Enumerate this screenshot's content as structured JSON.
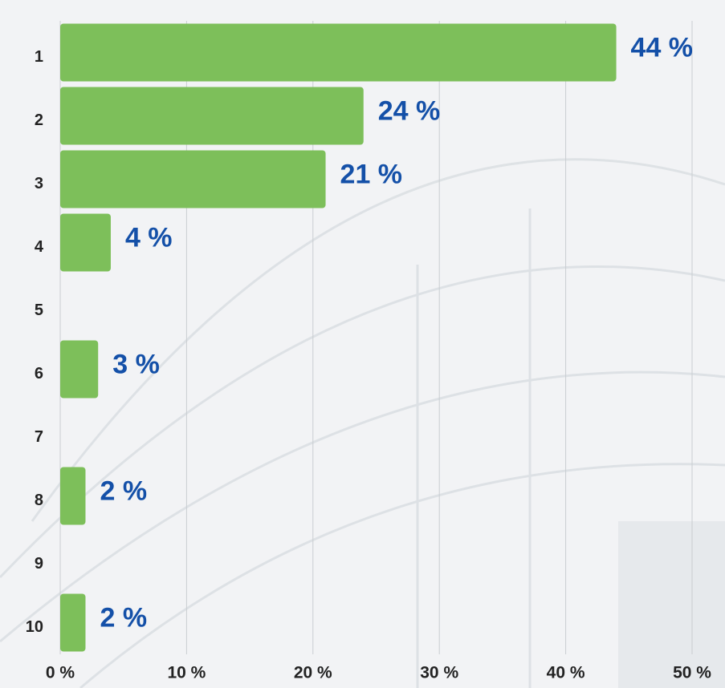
{
  "chart_data": {
    "type": "bar",
    "orientation": "horizontal",
    "categories": [
      "1",
      "2",
      "3",
      "4",
      "5",
      "6",
      "7",
      "8",
      "9",
      "10"
    ],
    "values": [
      44,
      24,
      21,
      4,
      null,
      3,
      null,
      2,
      null,
      2
    ],
    "value_labels": [
      "44 %",
      "24 %",
      "21 %",
      "4 %",
      null,
      "3 %",
      null,
      "2 %",
      null,
      "2 %"
    ],
    "color": "#7dbf5a",
    "xlim": [
      0,
      50
    ],
    "xticks": [
      {
        "value": 0,
        "label": "0 %"
      },
      {
        "value": 10,
        "label": "10 %"
      },
      {
        "value": 20,
        "label": "20 %"
      },
      {
        "value": 30,
        "label": "30 %"
      },
      {
        "value": 40,
        "label": "40 %"
      },
      {
        "value": 50,
        "label": "50 %"
      }
    ],
    "grid": true
  }
}
